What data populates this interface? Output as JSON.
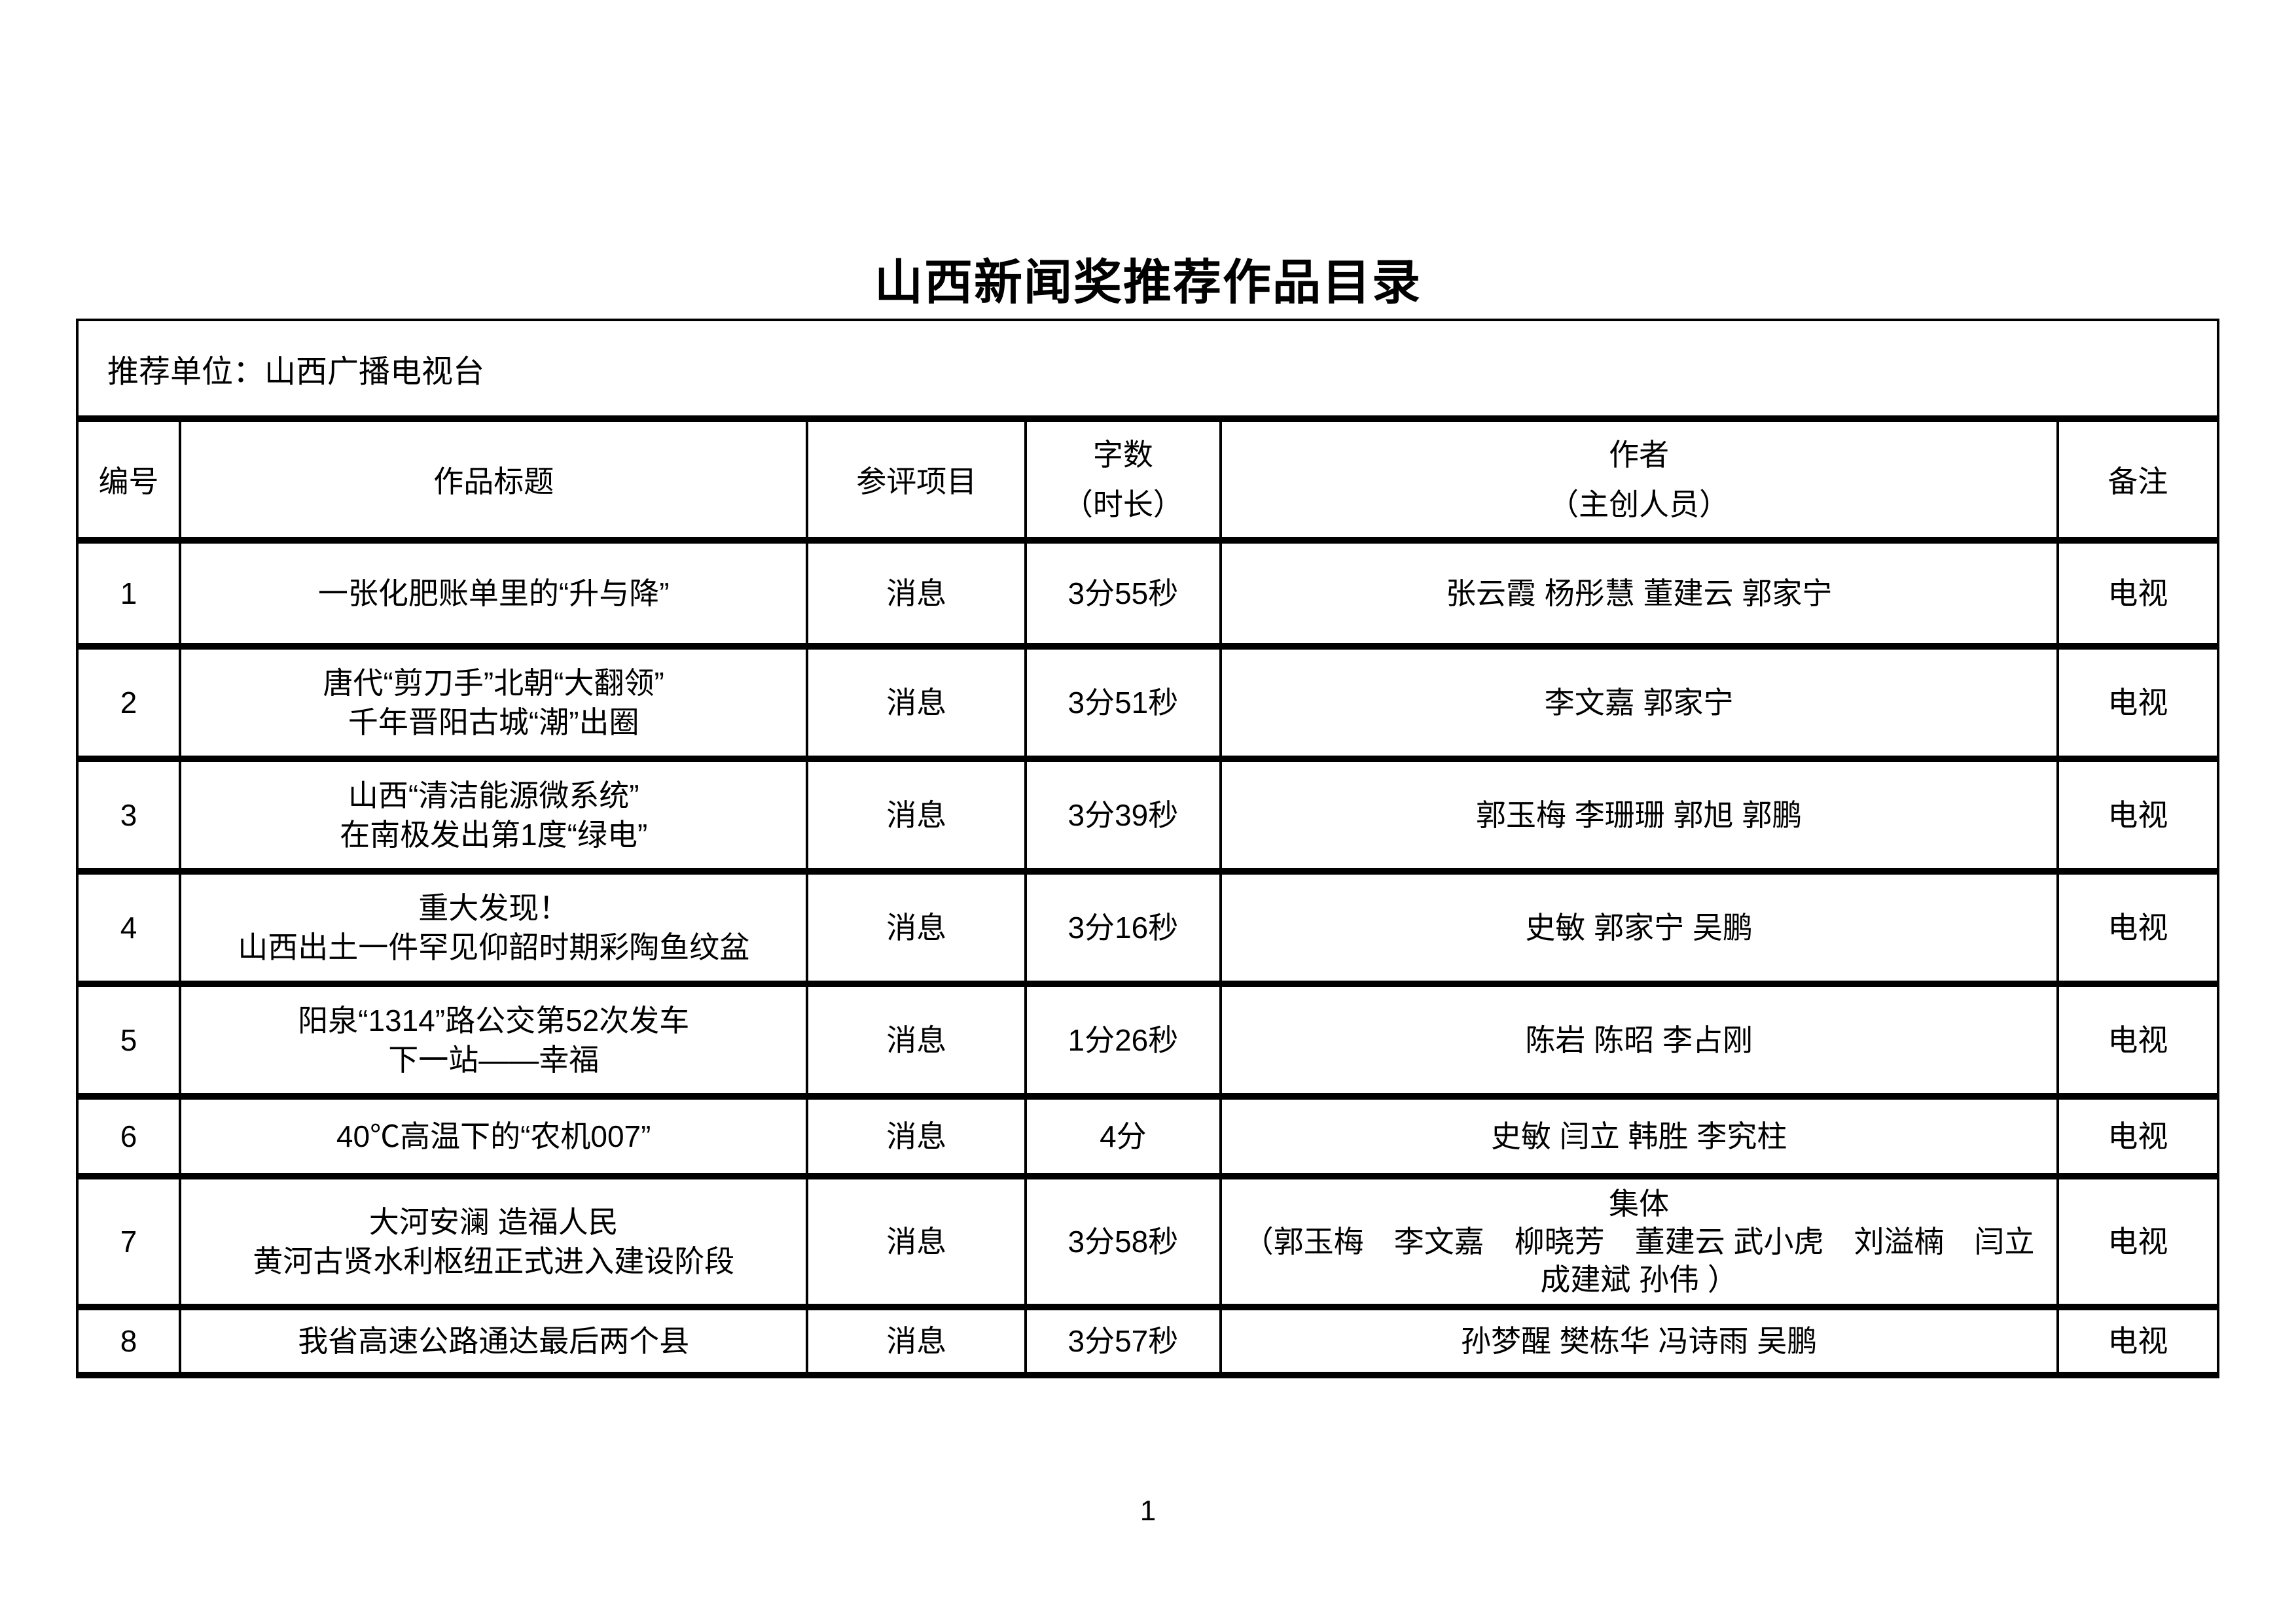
{
  "page": {
    "title": "山西新闻奖推荐作品目录",
    "recommending_unit": "推荐单位：山西广播电视台",
    "page_number": "1"
  },
  "table": {
    "headers": {
      "id": "编号",
      "title": "作品标题",
      "category": "参评项目",
      "length_line1": "字数",
      "length_line2": "（时长）",
      "author_line1": "作者",
      "author_line2": "（主创人员）",
      "remark": "备注"
    },
    "rows": [
      {
        "id": "1",
        "title_lines": [
          "一张化肥账单里的“升与降”"
        ],
        "category": "消息",
        "length": "3分55秒",
        "author_lines": [
          "张云霞 杨彤慧 董建云 郭家宁"
        ],
        "remark": "电视"
      },
      {
        "id": "2",
        "title_lines": [
          "唐代“剪刀手”北朝“大翻领”",
          "千年晋阳古城“潮”出圈"
        ],
        "category": "消息",
        "length": "3分51秒",
        "author_lines": [
          "李文嘉 郭家宁"
        ],
        "remark": "电视"
      },
      {
        "id": "3",
        "title_lines": [
          "山西“清洁能源微系统”",
          "在南极发出第1度“绿电”"
        ],
        "category": "消息",
        "length": "3分39秒",
        "author_lines": [
          "郭玉梅 李珊珊 郭旭 郭鹏"
        ],
        "remark": "电视"
      },
      {
        "id": "4",
        "title_lines": [
          "重大发现！",
          "山西出土一件罕见仰韶时期彩陶鱼纹盆"
        ],
        "category": "消息",
        "length": "3分16秒",
        "author_lines": [
          "史敏 郭家宁 吴鹏"
        ],
        "remark": "电视"
      },
      {
        "id": "5",
        "title_lines": [
          "阳泉“1314”路公交第52次发车",
          "下一站——幸福"
        ],
        "category": "消息",
        "length": "1分26秒",
        "author_lines": [
          "陈岩 陈昭 李占刚"
        ],
        "remark": "电视"
      },
      {
        "id": "6",
        "title_lines": [
          "40℃高温下的“农机007”"
        ],
        "category": "消息",
        "length": "4分",
        "author_lines": [
          "史敏 闫立 韩胜 李究柱"
        ],
        "remark": "电视"
      },
      {
        "id": "7",
        "title_lines": [
          "大河安澜 造福人民",
          "黄河古贤水利枢纽正式进入建设阶段"
        ],
        "category": "消息",
        "length": "3分58秒",
        "author_lines": [
          "集体",
          "（郭玉梅　李文嘉　柳晓芳　董建云 武小虎　刘溢楠　闫立",
          "成建斌 孙伟 ）"
        ],
        "remark": "电视"
      },
      {
        "id": "8",
        "title_lines": [
          "我省高速公路通达最后两个县"
        ],
        "category": "消息",
        "length": "3分57秒",
        "author_lines": [
          "孙梦醒 樊栋华 冯诗雨 吴鹏"
        ],
        "remark": "电视"
      }
    ]
  }
}
